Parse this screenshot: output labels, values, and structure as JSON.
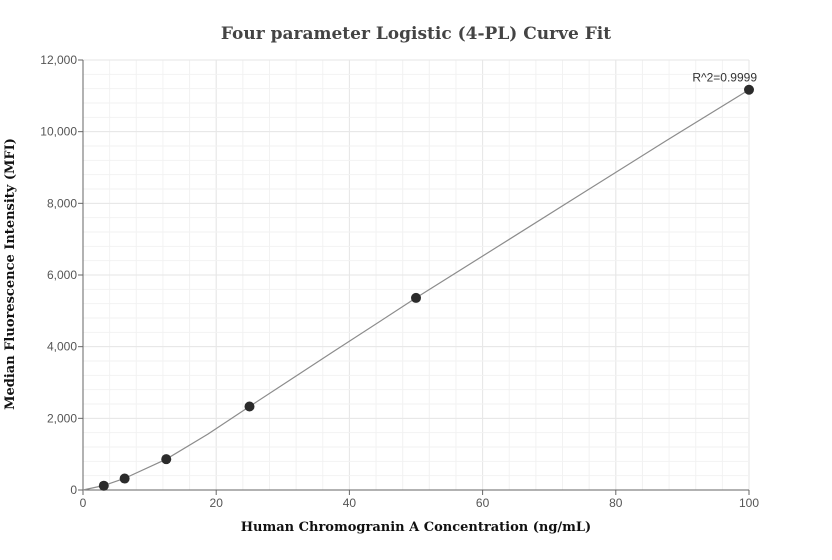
{
  "chart_data": {
    "type": "scatter",
    "title": "Four parameter Logistic (4-PL) Curve Fit",
    "xlabel": "Human Chromogranin A Concentration (ng/mL)",
    "ylabel": "Median Fluorescence Intensity (MFI)",
    "xlim": [
      0,
      100
    ],
    "ylim": [
      0,
      12000
    ],
    "x_ticks": [
      0,
      20,
      40,
      60,
      80,
      100
    ],
    "x_tick_labels": [
      "0",
      "20",
      "40",
      "60",
      "80",
      "100"
    ],
    "y_ticks": [
      0,
      2000,
      4000,
      6000,
      8000,
      10000,
      12000
    ],
    "y_tick_labels": [
      "0",
      "2,000",
      "4,000",
      "6,000",
      "8,000",
      "10,000",
      "12,000"
    ],
    "grid": true,
    "series": [
      {
        "type": "points",
        "x": [
          3.125,
          6.25,
          12.5,
          25,
          50,
          100
        ],
        "y": [
          120,
          320,
          860,
          2330,
          5360,
          11170
        ]
      },
      {
        "type": "fit-curve",
        "x": [
          0,
          3.125,
          6.25,
          12.5,
          18.75,
          25,
          37.5,
          50,
          62.5,
          75,
          87.5,
          100
        ],
        "y": [
          0,
          125,
          325,
          860,
          1560,
          2330,
          3850,
          5360,
          6820,
          8280,
          9740,
          11170
        ]
      }
    ],
    "annotations": [
      {
        "text": "R^2=0.9999",
        "x": 100,
        "y": 11170
      }
    ],
    "colors": {
      "points": "#2b2b2b",
      "curve": "#8c8c8c",
      "grid": "#e6e6e6",
      "axis": "#666666"
    }
  }
}
